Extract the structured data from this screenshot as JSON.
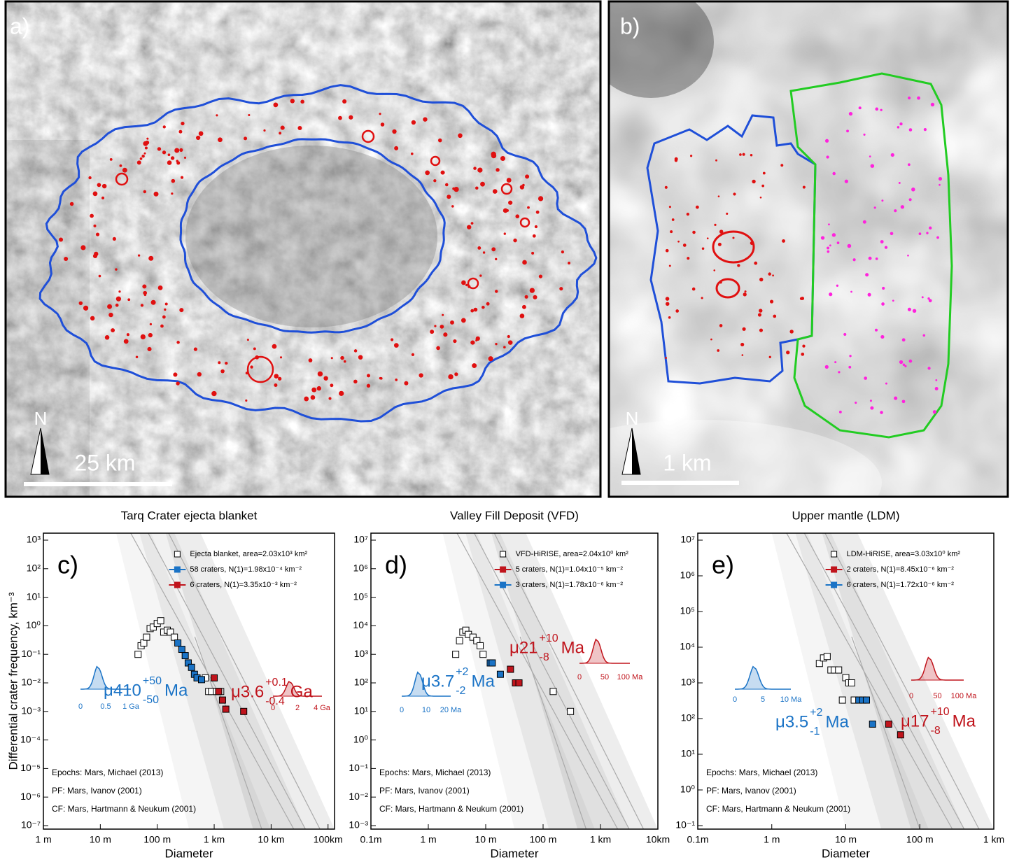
{
  "panels": [
    {
      "label": "a)",
      "north": "N",
      "scale": "25 km"
    },
    {
      "label": "b)",
      "north": "N",
      "scale": "1 km"
    }
  ],
  "chart_data": [
    {
      "type": "scatter",
      "title": "Tarq Crater ejecta blanket",
      "panel": "c)",
      "x_label": "Diameter",
      "y_label": "Differential crater frequency, km⁻³",
      "log_x": true,
      "log_y": true,
      "xlim": [
        1,
        130000
      ],
      "ylim": [
        1e-07,
        1000
      ],
      "xticks": [
        {
          "value": 1,
          "label": "1 m"
        },
        {
          "value": 10,
          "label": "10 m"
        },
        {
          "value": 100,
          "label": "100 m"
        },
        {
          "value": 1000,
          "label": "1 km"
        },
        {
          "value": 10000,
          "label": "10 km"
        },
        {
          "value": 100000,
          "label": "100km"
        }
      ],
      "yticks": [
        {
          "value": 1000,
          "label": "10³"
        },
        {
          "value": 100,
          "label": "10²"
        },
        {
          "value": 10,
          "label": "10¹"
        },
        {
          "value": 1,
          "label": "10⁰"
        },
        {
          "value": 0.1,
          "label": "10⁻¹"
        },
        {
          "value": 0.01,
          "label": "10⁻²"
        },
        {
          "value": 0.001,
          "label": "10⁻³"
        },
        {
          "value": 0.0001,
          "label": "10⁻⁴"
        },
        {
          "value": 1e-05,
          "label": "10⁻⁵"
        },
        {
          "value": 1e-06,
          "label": "10⁻⁶"
        },
        {
          "value": 1e-07,
          "label": "10⁻⁷"
        }
      ],
      "series": [
        {
          "name": "Ejecta blanket, area=2.03x10³ km²",
          "color": "#000000",
          "marker": "open",
          "x": [
            46,
            52,
            58,
            65,
            75,
            85,
            100,
            115,
            130,
            150,
            170,
            200,
            700,
            800,
            900,
            1100,
            1300
          ],
          "values": [
            0.1,
            0.2,
            0.25,
            0.4,
            0.8,
            0.9,
            1.2,
            1.5,
            0.6,
            0.7,
            0.6,
            0.4,
            0.015,
            0.005,
            0.005,
            0.005,
            0.005
          ]
        },
        {
          "name": "58 craters, N(1)=1.98x10⁻⁴ km⁻²",
          "color": "#1a73c6",
          "marker": "filled",
          "x": [
            230,
            270,
            310,
            350,
            400,
            450,
            500,
            600
          ],
          "values": [
            0.25,
            0.15,
            0.09,
            0.05,
            0.035,
            0.02,
            0.015,
            0.013
          ]
        },
        {
          "name": "6 craters, N(1)=3.35x10⁻³ km⁻²",
          "color": "#c0141c",
          "marker": "filled",
          "x": [
            1000,
            1200,
            1400,
            1600,
            3300
          ],
          "values": [
            0.015,
            0.005,
            0.0025,
            0.0012,
            0.001
          ]
        }
      ],
      "annotations": [
        {
          "text": "μ410",
          "plus": "+50",
          "minus": "-50",
          "unit": "Ma",
          "color": "#1a73c6",
          "inset_ticks": [
            "0",
            "0.5",
            "1 Ga"
          ]
        },
        {
          "text": "μ3.6",
          "plus": "+0.1",
          "minus": "-0.4",
          "unit": "Ga",
          "color": "#c0141c",
          "inset_ticks": [
            "0",
            "2",
            "4 Ga"
          ]
        }
      ],
      "notes": [
        "Epochs: Mars, Michael (2013)",
        "PF: Mars, Ivanov (2001)",
        "CF: Mars, Hartmann & Neukum (2001)"
      ]
    },
    {
      "type": "scatter",
      "title": "Valley Fill Deposit (VFD)",
      "panel": "d)",
      "x_label": "Diameter",
      "log_x": true,
      "log_y": true,
      "xlim": [
        0.1,
        10000
      ],
      "ylim": [
        0.001,
        10000000
      ],
      "xticks": [
        {
          "value": 0.1,
          "label": "0.1m"
        },
        {
          "value": 1,
          "label": "1 m"
        },
        {
          "value": 10,
          "label": "10 m"
        },
        {
          "value": 100,
          "label": "100 m"
        },
        {
          "value": 1000,
          "label": "1 km"
        },
        {
          "value": 10000,
          "label": "10km"
        }
      ],
      "yticks": [
        {
          "value": 10000000,
          "label": "10⁷"
        },
        {
          "value": 1000000,
          "label": "10⁶"
        },
        {
          "value": 100000,
          "label": "10⁵"
        },
        {
          "value": 10000,
          "label": "10⁴"
        },
        {
          "value": 1000,
          "label": "10³"
        },
        {
          "value": 100,
          "label": "10²"
        },
        {
          "value": 10,
          "label": "10¹"
        },
        {
          "value": 1,
          "label": "10⁰"
        },
        {
          "value": 0.1,
          "label": "10⁻¹"
        },
        {
          "value": 0.01,
          "label": "10⁻²"
        },
        {
          "value": 0.001,
          "label": "10⁻³"
        }
      ],
      "series": [
        {
          "name": "VFD-HiRISE, area=2.04x10⁰ km²",
          "color": "#000000",
          "marker": "open",
          "x": [
            3,
            3.5,
            4,
            4.5,
            5,
            6,
            7,
            8,
            9,
            150,
            300
          ],
          "values": [
            1000,
            3000,
            6000,
            7000,
            5000,
            4000,
            3000,
            2000,
            1000,
            50,
            10
          ]
        },
        {
          "name": "5 craters, N(1)=1.04x10⁻⁵ km⁻²",
          "color": "#c0141c",
          "marker": "filled",
          "x": [
            27,
            33,
            38
          ],
          "values": [
            300,
            100,
            100
          ]
        },
        {
          "name": "3 craters, N(1)=1.78x10⁻⁶ km⁻²",
          "color": "#1a73c6",
          "marker": "filled",
          "x": [
            12,
            13,
            18
          ],
          "values": [
            500,
            500,
            200
          ]
        }
      ],
      "annotations": [
        {
          "text": "μ3.7",
          "plus": "+2",
          "minus": "-2",
          "unit": "Ma",
          "color": "#1a73c6",
          "inset_ticks": [
            "0",
            "10",
            "20 Ma"
          ]
        },
        {
          "text": "μ21",
          "plus": "+10",
          "minus": "-8",
          "unit": "Ma",
          "color": "#c0141c",
          "inset_ticks": [
            "0",
            "50",
            "100 Ma"
          ]
        }
      ],
      "notes": [
        "Epochs: Mars, Michael (2013)",
        "PF: Mars, Ivanov (2001)",
        "CF: Mars, Hartmann & Neukum (2001)"
      ]
    },
    {
      "type": "scatter",
      "title": "Upper mantle (LDM)",
      "panel": "e)",
      "x_label": "Diameter",
      "log_x": true,
      "log_y": true,
      "xlim": [
        0.1,
        1000
      ],
      "ylim": [
        0.1,
        10000000
      ],
      "xticks": [
        {
          "value": 0.1,
          "label": "0.1m"
        },
        {
          "value": 1,
          "label": "1 m"
        },
        {
          "value": 10,
          "label": "10 m"
        },
        {
          "value": 100,
          "label": "100 m"
        },
        {
          "value": 1000,
          "label": "1 km"
        }
      ],
      "yticks": [
        {
          "value": 10000000,
          "label": "10⁷"
        },
        {
          "value": 1000000,
          "label": "10⁶"
        },
        {
          "value": 100000,
          "label": "10⁵"
        },
        {
          "value": 10000,
          "label": "10⁴"
        },
        {
          "value": 1000,
          "label": "10³"
        },
        {
          "value": 100,
          "label": "10²"
        },
        {
          "value": 10,
          "label": "10¹"
        },
        {
          "value": 1,
          "label": "10⁰"
        },
        {
          "value": 0.1,
          "label": "10⁻¹"
        }
      ],
      "series": [
        {
          "name": "LDM-HiRISE, area=3.03x10⁰ km²",
          "color": "#000000",
          "marker": "open",
          "x": [
            4.4,
            5,
            5.6,
            6.3,
            7,
            8,
            10,
            11,
            12,
            9,
            13
          ],
          "values": [
            3500,
            5000,
            5500,
            2300,
            2300,
            2300,
            1400,
            1000,
            1000,
            330,
            330
          ]
        },
        {
          "name": "2 craters, N(1)=8.45x10⁻⁶ km⁻²",
          "color": "#c0141c",
          "marker": "filled",
          "x": [
            38,
            55
          ],
          "values": [
            70,
            35
          ]
        },
        {
          "name": "6 craters, N(1)=1.72x10⁻⁶ km⁻²",
          "color": "#1a73c6",
          "marker": "filled",
          "x": [
            15,
            17,
            19,
            23
          ],
          "values": [
            330,
            330,
            330,
            70
          ]
        }
      ],
      "annotations": [
        {
          "text": "μ3.5",
          "plus": "+2",
          "minus": "-1",
          "unit": "Ma",
          "color": "#1a73c6",
          "inset_ticks": [
            "0",
            "5",
            "10 Ma"
          ]
        },
        {
          "text": "μ17",
          "plus": "+10",
          "minus": "-8",
          "unit": "Ma",
          "color": "#c0141c",
          "inset_ticks": [
            "0",
            "50",
            "100 Ma"
          ]
        }
      ],
      "notes": [
        "Epochs: Mars, Michael (2013)",
        "PF: Mars, Ivanov (2001)",
        "CF: Mars, Hartmann & Neukum (2001)"
      ]
    }
  ]
}
